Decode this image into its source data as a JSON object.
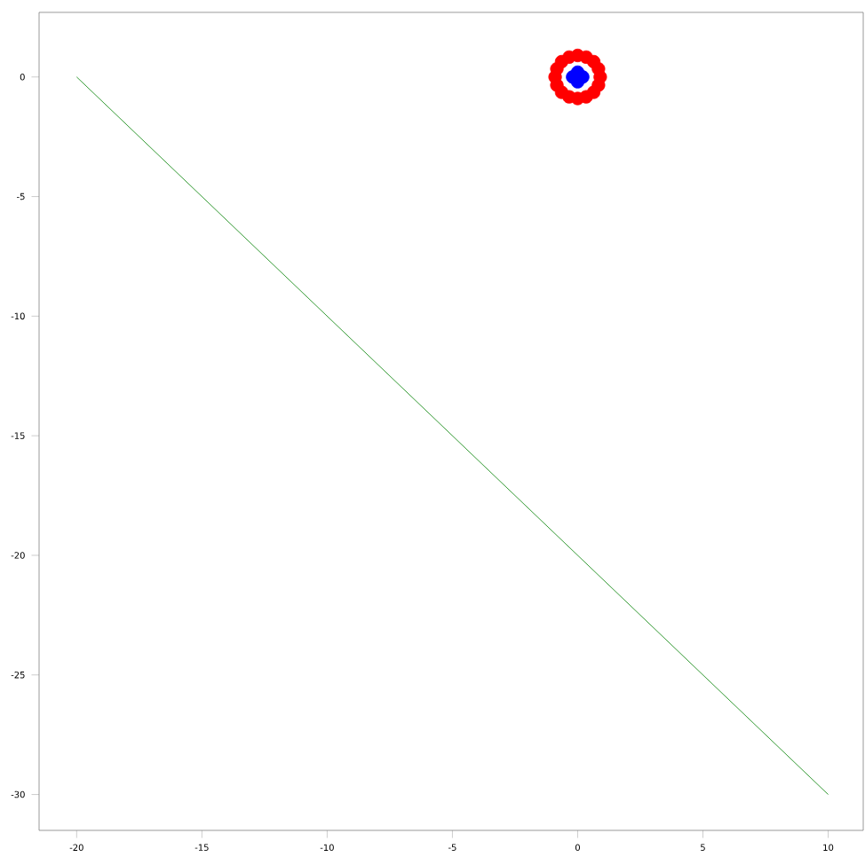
{
  "chart_data": {
    "type": "scatter",
    "xlim": [
      -21.5,
      11.4
    ],
    "ylim": [
      -31.5,
      2.7
    ],
    "xticks": [
      -20,
      -15,
      -10,
      -5,
      0,
      5,
      10
    ],
    "yticks": [
      0,
      -5,
      -10,
      -15,
      -20,
      -25,
      -30
    ],
    "grid": false,
    "series": [
      {
        "type": "line",
        "marker": "none",
        "color": "#008000",
        "x": [
          -20,
          10
        ],
        "values": [
          0,
          -30
        ]
      },
      {
        "marker": "circle",
        "color": "#ff0000",
        "x": [
          0.9,
          0.83,
          0.64,
          0.34,
          0,
          -0.34,
          -0.64,
          -0.83,
          -0.9,
          -0.83,
          -0.64,
          -0.34,
          0,
          0.34,
          0.64,
          0.83
        ],
        "values": [
          0,
          0.34,
          0.64,
          0.83,
          0.9,
          0.83,
          0.64,
          0.34,
          0,
          -0.34,
          -0.64,
          -0.83,
          -0.9,
          -0.83,
          -0.64,
          -0.34
        ]
      },
      {
        "marker": "circle",
        "color": "#0000ff",
        "x": [
          0.2,
          -0.2,
          0,
          0
        ],
        "values": [
          0,
          0,
          0.2,
          -0.2
        ]
      }
    ]
  }
}
